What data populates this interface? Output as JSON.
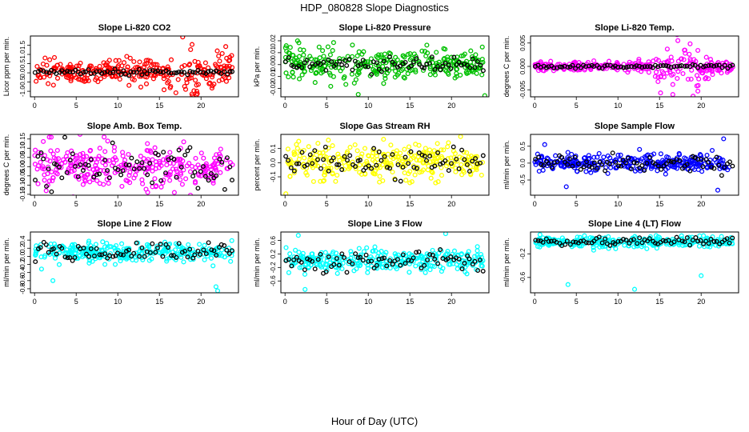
{
  "figure": {
    "title": "HDP_080828  Slope Diagnostics",
    "xlabel": "Hour of Day (UTC)"
  },
  "colors": {
    "red": "#ff0000",
    "green": "#00c000",
    "magenta": "#ff00ff",
    "yellow": "#ffff00",
    "blue": "#0000ff",
    "cyan": "#00ffff",
    "black": "#000000"
  },
  "chart_data": [
    {
      "type": "scatter",
      "title": "Slope Li-820 CO2",
      "ylabel": "Licor ppm per min.",
      "color": "red",
      "xlim": [
        -0.5,
        24.5
      ],
      "ylim": [
        -1.3,
        2.0
      ],
      "xticks": [
        0,
        5,
        10,
        15,
        20
      ],
      "xtick_labels": [
        "0",
        "5",
        "10",
        "15",
        "20"
      ],
      "yticks": [
        -1.0,
        -0.5,
        0.0,
        0.5,
        1.0,
        1.5
      ],
      "ytick_labels": [
        "-1.0",
        "-0.5",
        "0.0",
        "0.5",
        "1.0",
        "1.5"
      ],
      "center": 0.05,
      "spread": [
        [
          0,
          0.28
        ],
        [
          14,
          0.32
        ],
        [
          17,
          0.6
        ],
        [
          24,
          0.5
        ]
      ],
      "black_center": 0.05,
      "black_spread": 0.08,
      "outliers": [
        [
          17.8,
          1.95
        ],
        [
          18.9,
          -1.15
        ],
        [
          19.5,
          -1.0
        ]
      ]
    },
    {
      "type": "scatter",
      "title": "Slope Li-820 Pressure",
      "ylabel": "kPa per min.",
      "color": "green",
      "xlim": [
        -0.5,
        24.5
      ],
      "ylim": [
        -0.027,
        0.024
      ],
      "xticks": [
        0,
        5,
        10,
        15,
        20
      ],
      "xtick_labels": [
        "0",
        "5",
        "10",
        "15",
        "20"
      ],
      "yticks": [
        -0.02,
        -0.01,
        0.0,
        0.01,
        0.02
      ],
      "ytick_labels": [
        "-0.02",
        "-0.01",
        "0.00",
        "0.01",
        "0.02"
      ],
      "center": 0.0,
      "spread": [
        [
          0,
          0.008
        ],
        [
          10,
          0.006
        ],
        [
          24,
          0.005
        ]
      ],
      "black_center": 0.0,
      "black_spread": 0.003,
      "outliers": [
        [
          1.5,
          0.02
        ],
        [
          8.8,
          -0.025
        ],
        [
          24,
          -0.026
        ]
      ]
    },
    {
      "type": "scatter",
      "title": "Slope Li-820 Temp.",
      "ylabel": "degrees C per min.",
      "color": "magenta",
      "xlim": [
        -0.5,
        24.5
      ],
      "ylim": [
        -0.0065,
        0.0065
      ],
      "xticks": [
        0,
        5,
        10,
        15,
        20
      ],
      "xtick_labels": [
        "0",
        "5",
        "10",
        "15",
        "20"
      ],
      "yticks": [
        -0.005,
        0.0,
        0.005
      ],
      "ytick_labels": [
        "-0.005",
        "0.000",
        "0.005"
      ],
      "center": 0.0,
      "spread": [
        [
          0,
          0.0004
        ],
        [
          14,
          0.0005
        ],
        [
          15,
          0.0025
        ],
        [
          20,
          0.0025
        ],
        [
          21,
          0.001
        ],
        [
          24,
          0.0008
        ]
      ],
      "black_center": 0.0,
      "black_spread": 0.0002,
      "outliers": [
        [
          16.6,
          -0.006
        ],
        [
          17.2,
          0.0055
        ]
      ]
    },
    {
      "type": "scatter",
      "title": "Slope Amb. Box Temp.",
      "ylabel": "degrees C per min.",
      "color": "magenta",
      "xlim": [
        -0.5,
        24.5
      ],
      "ylim": [
        -0.155,
        0.175
      ],
      "xticks": [
        0,
        5,
        10,
        15,
        20
      ],
      "xtick_labels": [
        "0",
        "5",
        "10",
        "15",
        "20"
      ],
      "yticks": [
        -0.15,
        -0.1,
        -0.05,
        0.0,
        0.05,
        0.1,
        0.15
      ],
      "ytick_labels": [
        "-0.15",
        "-0.10",
        "-0.05",
        "0.00",
        "0.05",
        "0.10",
        "0.15"
      ],
      "center": 0.0,
      "spread": [
        [
          0,
          0.06
        ],
        [
          24,
          0.06
        ]
      ],
      "black_center": 0.0,
      "black_spread": 0.06,
      "outliers": [
        [
          2.0,
          0.16
        ],
        [
          13.6,
          -0.14
        ]
      ]
    },
    {
      "type": "scatter",
      "title": "Slope Gas Stream RH",
      "ylabel": "percent per min.",
      "color": "yellow",
      "xlim": [
        -0.5,
        24.5
      ],
      "ylim": [
        -0.23,
        0.2
      ],
      "xticks": [
        0,
        5,
        10,
        15,
        20
      ],
      "xtick_labels": [
        "0",
        "5",
        "10",
        "15",
        "20"
      ],
      "yticks": [
        -0.1,
        0.0,
        0.1
      ],
      "ytick_labels": [
        "-0.1",
        "0.0",
        "0.1"
      ],
      "center": 0.0,
      "spread": [
        [
          0,
          0.06
        ],
        [
          24,
          0.06
        ]
      ],
      "black_center": 0.0,
      "black_spread": 0.05,
      "outliers": [
        [
          0.1,
          -0.22
        ],
        [
          5.2,
          0.16
        ]
      ]
    },
    {
      "type": "scatter",
      "title": "Slope Sample Flow",
      "ylabel": "ml/min per min.",
      "color": "blue",
      "xlim": [
        -0.5,
        24.5
      ],
      "ylim": [
        -0.95,
        0.85
      ],
      "xticks": [
        0,
        5,
        10,
        15,
        20
      ],
      "xtick_labels": [
        "0",
        "5",
        "10",
        "15",
        "20"
      ],
      "yticks": [
        -0.5,
        0.0,
        0.5
      ],
      "ytick_labels": [
        "-0.5",
        "0.0",
        "0.5"
      ],
      "center": 0.0,
      "spread": [
        [
          0,
          0.12
        ],
        [
          24,
          0.13
        ]
      ],
      "black_center": 0.0,
      "black_spread": 0.12,
      "outliers": [
        [
          1.2,
          0.55
        ],
        [
          3.8,
          -0.7
        ],
        [
          22.7,
          0.72
        ],
        [
          22.0,
          -0.8
        ]
      ]
    },
    {
      "type": "scatter",
      "title": "Slope Line 2 Flow",
      "ylabel": "ml/min per min.",
      "color": "cyan",
      "xlim": [
        -0.5,
        24.5
      ],
      "ylim": [
        -0.9,
        0.6
      ],
      "xticks": [
        0,
        5,
        10,
        15,
        20
      ],
      "xtick_labels": [
        "0",
        "5",
        "10",
        "15",
        "20"
      ],
      "yticks": [
        -0.8,
        -0.6,
        -0.4,
        -0.2,
        0.0,
        0.2,
        0.4
      ],
      "ytick_labels": [
        "-0.8",
        "-0.6",
        "-0.4",
        "-0.2",
        "0.0",
        "0.2",
        "0.4"
      ],
      "center": 0.1,
      "spread": [
        [
          0,
          0.12
        ],
        [
          24,
          0.12
        ]
      ],
      "black_center": 0.1,
      "black_spread": 0.11,
      "outliers": [
        [
          2.2,
          -0.6
        ],
        [
          21.8,
          -0.75
        ],
        [
          22.0,
          -0.85
        ]
      ]
    },
    {
      "type": "scatter",
      "title": "Slope Line 3 Flow",
      "ylabel": "ml/min per min.",
      "color": "cyan",
      "xlim": [
        -0.5,
        24.5
      ],
      "ylim": [
        -0.95,
        0.85
      ],
      "xticks": [
        0,
        5,
        10,
        15,
        20
      ],
      "xtick_labels": [
        "0",
        "5",
        "10",
        "15",
        "20"
      ],
      "yticks": [
        -0.6,
        -0.2,
        0.2,
        0.6
      ],
      "ytick_labels": [
        "-0.6",
        "-0.2",
        "0.2",
        "0.6"
      ],
      "center": 0.0,
      "spread": [
        [
          0,
          0.15
        ],
        [
          24,
          0.15
        ]
      ],
      "black_center": 0.0,
      "black_spread": 0.15,
      "outliers": [
        [
          1.6,
          0.75
        ],
        [
          19.3,
          0.8
        ],
        [
          2.4,
          -0.85
        ]
      ]
    },
    {
      "type": "scatter",
      "title": "Slope Line 4 (LT) Flow",
      "ylabel": "ml/min per min.",
      "color": "cyan",
      "xlim": [
        -0.5,
        24.5
      ],
      "ylim": [
        -0.86,
        0.17
      ],
      "xticks": [
        0,
        5,
        10,
        15,
        20
      ],
      "xtick_labels": [
        "0",
        "5",
        "10",
        "15",
        "20"
      ],
      "yticks": [
        -0.6,
        -0.2
      ],
      "ytick_labels": [
        "-0.6",
        "-0.2"
      ],
      "center": 0.0,
      "spread": [
        [
          0,
          0.045
        ],
        [
          24,
          0.045
        ]
      ],
      "black_center": 0.01,
      "black_spread": 0.04,
      "outliers": [
        [
          4.0,
          -0.72
        ],
        [
          12.0,
          -0.8
        ],
        [
          20.0,
          -0.57
        ]
      ]
    }
  ]
}
